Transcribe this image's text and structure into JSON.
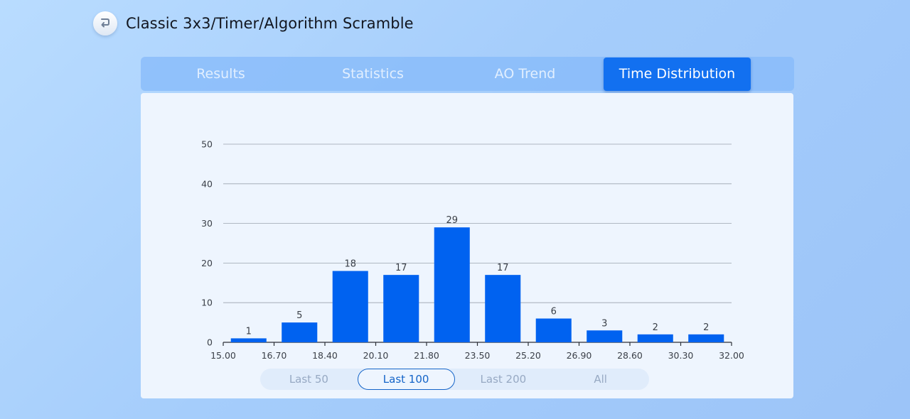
{
  "header": {
    "title": "Classic 3x3/Timer/Algorithm Scramble"
  },
  "tabs": [
    {
      "label": "Results"
    },
    {
      "label": "Statistics"
    },
    {
      "label": "AO Trend"
    },
    {
      "label": "Time Distribution"
    }
  ],
  "active_tab": 3,
  "range_selector": {
    "options": [
      {
        "label": "Last 50"
      },
      {
        "label": "Last 100"
      },
      {
        "label": "Last 200"
      },
      {
        "label": "All"
      }
    ],
    "selected": 1
  },
  "colors": {
    "bar": "#0062f0",
    "accent": "#1270f0",
    "grid": "#9aa3ae"
  },
  "chart_data": {
    "type": "bar",
    "x_ticks": [
      "15.00",
      "16.70",
      "18.40",
      "20.10",
      "21.80",
      "23.50",
      "25.20",
      "26.90",
      "28.60",
      "30.30",
      "32.00"
    ],
    "values": [
      1,
      5,
      18,
      17,
      29,
      17,
      6,
      3,
      2,
      2
    ],
    "data_labels": [
      "1",
      "5",
      "18",
      "17",
      "29",
      "17",
      "6",
      "3",
      "2",
      "2"
    ],
    "y_ticks": [
      "0",
      "10",
      "20",
      "30",
      "40",
      "50"
    ],
    "ylim": [
      0,
      50
    ],
    "grid": true
  }
}
